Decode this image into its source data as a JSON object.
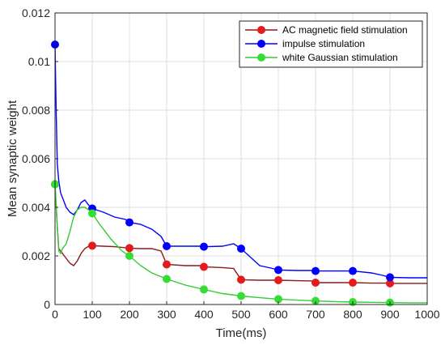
{
  "chart_data": {
    "type": "line",
    "xlabel": "Time(ms)",
    "ylabel": "Mean synaptic weight",
    "xlim": [
      0,
      1000
    ],
    "ylim": [
      0,
      0.012
    ],
    "xticks": [
      0,
      100,
      200,
      300,
      400,
      500,
      600,
      700,
      800,
      900,
      1000
    ],
    "yticks": [
      0,
      0.002,
      0.004,
      0.006,
      0.008,
      0.01,
      0.012
    ],
    "xtick_labels": [
      "0",
      "100",
      "200",
      "300",
      "400",
      "500",
      "600",
      "700",
      "800",
      "900",
      "1000"
    ],
    "ytick_labels": [
      "0",
      "0.002",
      "0.004",
      "0.006",
      "0.008",
      "0.01",
      "0.012"
    ],
    "grid": true,
    "legend_position": "top-right",
    "series": [
      {
        "name": "AC magnetic field stimulation",
        "color": "#e41a1c",
        "line_color": "#8b1a1a",
        "markers": {
          "x": [
            0,
            100,
            200,
            300,
            400,
            500,
            600,
            700,
            800,
            900
          ],
          "y": [
            0.00495,
            0.00242,
            0.00232,
            0.00165,
            0.00155,
            0.00102,
            0.001,
            0.0009,
            0.0009,
            0.00087
          ]
        },
        "line": {
          "x": [
            0,
            5,
            10,
            20,
            30,
            40,
            50,
            60,
            70,
            80,
            90,
            100,
            130,
            160,
            200,
            230,
            260,
            285,
            300,
            350,
            390,
            400,
            450,
            480,
            500,
            550,
            590,
            600,
            650,
            690,
            700,
            750,
            790,
            800,
            850,
            890,
            900,
            950,
            1000
          ],
          "y": [
            0.00495,
            0.0035,
            0.0023,
            0.0021,
            0.0019,
            0.0017,
            0.0016,
            0.0018,
            0.0021,
            0.0023,
            0.0024,
            0.00242,
            0.0024,
            0.00238,
            0.00232,
            0.0023,
            0.0023,
            0.0022,
            0.00165,
            0.0016,
            0.0016,
            0.00155,
            0.00152,
            0.00148,
            0.00102,
            0.001,
            0.001,
            0.001,
            0.00098,
            0.00097,
            0.0009,
            0.0009,
            0.0009,
            0.0009,
            0.00088,
            0.00088,
            0.00087,
            0.00087,
            0.00087
          ]
        }
      },
      {
        "name": "impulse stimulation",
        "color": "#0000ff",
        "line_color": "#0000ff",
        "markers": {
          "x": [
            0,
            100,
            200,
            300,
            400,
            500,
            600,
            700,
            800,
            900
          ],
          "y": [
            0.0107,
            0.00395,
            0.00338,
            0.0024,
            0.00238,
            0.0023,
            0.00142,
            0.00138,
            0.00138,
            0.00112
          ]
        },
        "line": {
          "x": [
            0,
            3,
            6,
            10,
            15,
            20,
            30,
            40,
            50,
            60,
            70,
            80,
            90,
            100,
            130,
            160,
            190,
            200,
            230,
            260,
            285,
            300,
            350,
            390,
            400,
            450,
            480,
            500,
            550,
            580,
            600,
            650,
            690,
            700,
            750,
            790,
            800,
            850,
            880,
            900,
            950,
            1000
          ],
          "y": [
            0.0107,
            0.008,
            0.0058,
            0.0051,
            0.0046,
            0.0044,
            0.004,
            0.0038,
            0.0037,
            0.0039,
            0.0042,
            0.0043,
            0.0041,
            0.00395,
            0.0038,
            0.0036,
            0.0035,
            0.00338,
            0.0033,
            0.0031,
            0.0028,
            0.0024,
            0.0024,
            0.0024,
            0.00238,
            0.0024,
            0.0025,
            0.0023,
            0.0016,
            0.0015,
            0.00142,
            0.0014,
            0.0014,
            0.00138,
            0.00138,
            0.00138,
            0.00138,
            0.0013,
            0.0012,
            0.00112,
            0.0011,
            0.0011
          ]
        }
      },
      {
        "name": "white Gaussian stimulation",
        "color": "#33dd33",
        "line_color": "#33cc33",
        "markers": {
          "x": [
            0,
            100,
            200,
            300,
            400,
            500,
            600,
            700,
            800,
            900
          ],
          "y": [
            0.00495,
            0.00375,
            0.002,
            0.00105,
            0.00062,
            0.00035,
            0.00022,
            0.00015,
            0.0001,
            8e-05
          ]
        },
        "line": {
          "x": [
            0,
            5,
            10,
            15,
            20,
            30,
            40,
            50,
            60,
            70,
            80,
            90,
            100,
            120,
            150,
            180,
            200,
            230,
            260,
            300,
            350,
            400,
            450,
            500,
            550,
            600,
            650,
            700,
            750,
            800,
            850,
            900,
            950,
            1000
          ],
          "y": [
            0.00495,
            0.0035,
            0.0022,
            0.0021,
            0.0023,
            0.0025,
            0.003,
            0.0036,
            0.0039,
            0.004,
            0.004,
            0.0039,
            0.00375,
            0.0033,
            0.0027,
            0.0022,
            0.002,
            0.0016,
            0.0013,
            0.00105,
            0.0008,
            0.00062,
            0.00045,
            0.00035,
            0.00028,
            0.00022,
            0.00018,
            0.00015,
            0.00012,
            0.0001,
            9e-05,
            8e-05,
            7e-05,
            7e-05
          ]
        }
      }
    ]
  }
}
